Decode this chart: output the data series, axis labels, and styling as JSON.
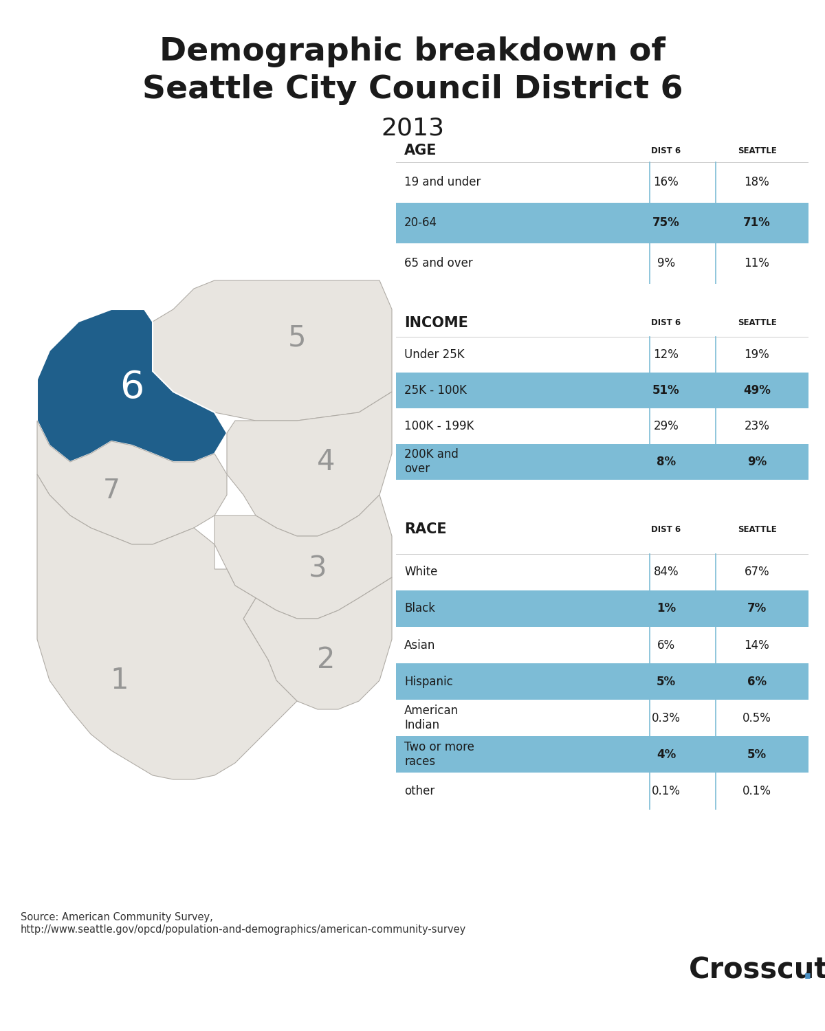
{
  "title_line1": "Demographic breakdown of",
  "title_line2": "Seattle City Council District 6",
  "subtitle": "2013",
  "background_color": "#ffffff",
  "highlight_color": "#7dbcd6",
  "text_color": "#1a1a1a",
  "map_fill_light": "#e8e5e0",
  "map_fill_district": "#1f5f8b",
  "map_stroke": "#b0aca6",
  "age_header": "AGE",
  "age_rows": [
    {
      "label": "19 and under",
      "dist6": "16%",
      "seattle": "18%",
      "highlight": false
    },
    {
      "label": "20-64",
      "dist6": "75%",
      "seattle": "71%",
      "highlight": true
    },
    {
      "label": "65 and over",
      "dist6": "9%",
      "seattle": "11%",
      "highlight": false
    }
  ],
  "income_header": "INCOME",
  "income_rows": [
    {
      "label": "Under 25K",
      "dist6": "12%",
      "seattle": "19%",
      "highlight": false
    },
    {
      "label": "25K - 100K",
      "dist6": "51%",
      "seattle": "49%",
      "highlight": true
    },
    {
      "label": "100K - 199K",
      "dist6": "29%",
      "seattle": "23%",
      "highlight": false
    },
    {
      "label": "200K and\nover",
      "dist6": "8%",
      "seattle": "9%",
      "highlight": true
    }
  ],
  "race_header": "RACE",
  "race_rows": [
    {
      "label": "White",
      "dist6": "84%",
      "seattle": "67%",
      "highlight": false
    },
    {
      "label": "Black",
      "dist6": "1%",
      "seattle": "7%",
      "highlight": true
    },
    {
      "label": "Asian",
      "dist6": "6%",
      "seattle": "14%",
      "highlight": false
    },
    {
      "label": "Hispanic",
      "dist6": "5%",
      "seattle": "6%",
      "highlight": true
    },
    {
      "label": "American\nIndian",
      "dist6": "0.3%",
      "seattle": "0.5%",
      "highlight": false
    },
    {
      "label": "Two or more\nraces",
      "dist6": "4%",
      "seattle": "5%",
      "highlight": true
    },
    {
      "label": "other",
      "dist6": "0.1%",
      "seattle": "0.1%",
      "highlight": false
    }
  ],
  "col_dist6": "DIST 6",
  "col_seattle": "SEATTLE",
  "source_text": "Source: American Community Survey,\nhttp://www.seattle.gov/opcd/population-and-demographics/american-community-survey",
  "crosscut_text": "Crosscut.",
  "crosscut_dot_color": "#4a90c4"
}
